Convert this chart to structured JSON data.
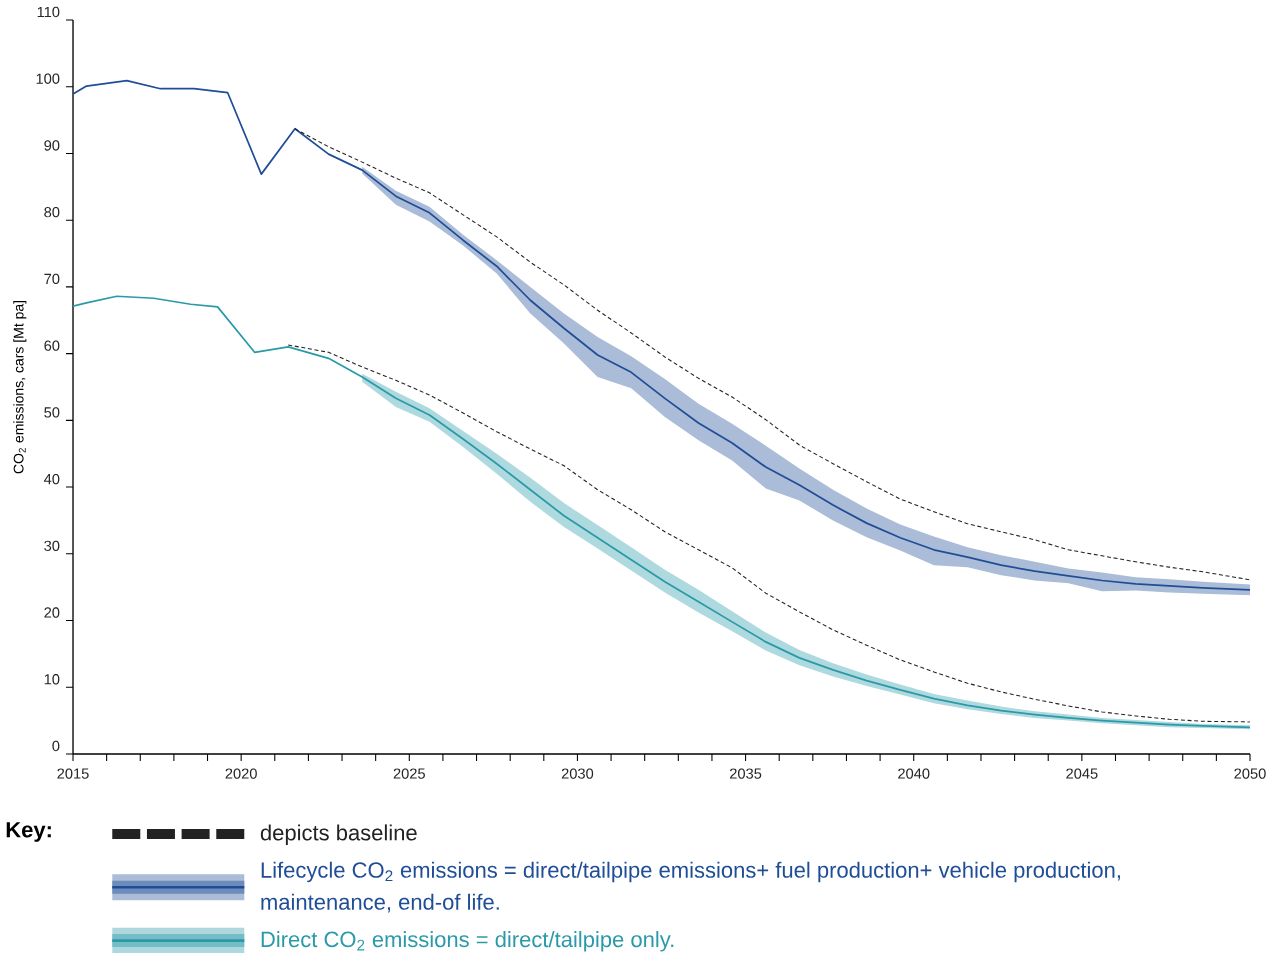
{
  "chart_data": {
    "type": "line",
    "ylabel": "CO$_{2}$ emissions, cars [Mt pa]",
    "legend_title": "Key:",
    "legend": "bottom",
    "xlim": [
      2015,
      2050
    ],
    "ylim": [
      0,
      110
    ],
    "yticks": [
      0,
      10,
      20,
      30,
      40,
      50,
      60,
      70,
      80,
      90,
      100,
      110
    ],
    "xticks": [
      2015,
      {
        "value": 2016,
        "label": null
      },
      {
        "value": 2017,
        "label": null
      },
      {
        "value": 2018,
        "label": null
      },
      {
        "value": 2019,
        "label": null
      },
      2020,
      {
        "value": 2021,
        "label": null
      },
      {
        "value": 2022,
        "label": null
      },
      {
        "value": 2023,
        "label": null
      },
      {
        "value": 2024,
        "label": null
      },
      2025,
      {
        "value": 2026,
        "label": null
      },
      {
        "value": 2027,
        "label": null
      },
      {
        "value": 2028,
        "label": null
      },
      {
        "value": 2029,
        "label": null
      },
      2030,
      {
        "value": 2031,
        "label": null
      },
      {
        "value": 2032,
        "label": null
      },
      {
        "value": 2033,
        "label": null
      },
      {
        "value": 2034,
        "label": null
      },
      2035,
      {
        "value": 2036,
        "label": null
      },
      {
        "value": 2037,
        "label": null
      },
      {
        "value": 2038,
        "label": null
      },
      {
        "value": 2039,
        "label": null
      },
      2040,
      {
        "value": 2041,
        "label": null
      },
      {
        "value": 2042,
        "label": null
      },
      {
        "value": 2043,
        "label": null
      },
      {
        "value": 2044,
        "label": null
      },
      2045,
      {
        "value": 2046,
        "label": null
      },
      {
        "value": 2047,
        "label": null
      },
      {
        "value": 2048,
        "label": null
      },
      {
        "value": 2049,
        "label": null
      },
      2050
    ],
    "series": [
      {
        "name": "depicts baseline",
        "color": "#222222",
        "line_style": "dashed",
        "x": [
          2021.6,
          2022.6,
          2023.6,
          2024.6,
          2025.6,
          2026.6,
          2027.6,
          2028.6,
          2029.6,
          2030.6,
          2031.6,
          2032.6,
          2033.6,
          2034.6,
          2035.6,
          2036.6,
          2037.6,
          2038.6,
          2039.6,
          2040.6,
          2041.6,
          2042.6,
          2043.6,
          2044.6,
          2045.6,
          2046.6,
          2047.6,
          2048.6,
          2050
        ],
        "values": [
          93.7,
          91.0,
          88.7,
          86.3,
          84.1,
          80.8,
          77.5,
          73.7,
          70.3,
          66.5,
          63.1,
          59.5,
          56.3,
          53.5,
          50.1,
          46.3,
          43.5,
          40.8,
          38.2,
          36.3,
          34.5,
          33.3,
          32.1,
          30.6,
          29.7,
          28.8,
          28.0,
          27.3,
          26.1
        ]
      },
      {
        "name": "Lifecycle CO$_{2}$ emissions = direct/tailpipe emissions+ fuel production+ vehicle production, maintenance, end-of life.",
        "color": "#1f4e96",
        "line_style": "solid",
        "x": [
          2015,
          2015.4,
          2016.6,
          2017.6,
          2018.6,
          2019.6,
          2020.6,
          2021.6,
          2022.6,
          2023.6,
          2024.6,
          2025.6,
          2026.6,
          2027.6,
          2028.6,
          2029.6,
          2030.6,
          2031.6,
          2032.6,
          2033.6,
          2034.6,
          2035.6,
          2036.6,
          2037.6,
          2038.6,
          2039.6,
          2040.6,
          2041.6,
          2042.6,
          2043.6,
          2044.6,
          2045.6,
          2046.6,
          2047.6,
          2048.6,
          2050
        ],
        "values": [
          98.9,
          100.1,
          100.9,
          99.7,
          99.7,
          99.1,
          86.9,
          93.7,
          89.9,
          87.5,
          83.6,
          81.1,
          77.0,
          73.1,
          68.0,
          63.8,
          59.8,
          57.2,
          53.3,
          49.6,
          46.6,
          43.0,
          40.3,
          37.3,
          34.6,
          32.4,
          30.6,
          29.5,
          28.3,
          27.4,
          26.7,
          26.0,
          25.5,
          25.2,
          24.9,
          24.6
        ],
        "lower": [
          null,
          null,
          null,
          null,
          null,
          null,
          null,
          null,
          null,
          87.0,
          82.3,
          79.8,
          76.2,
          72.0,
          66.0,
          61.5,
          56.5,
          54.8,
          50.5,
          47.0,
          44.0,
          39.8,
          38.0,
          35.0,
          32.5,
          30.5,
          28.3,
          28.0,
          26.8,
          26.0,
          25.6,
          24.4,
          24.5,
          24.2,
          24.0,
          23.8
        ],
        "upper": [
          null,
          null,
          null,
          null,
          null,
          null,
          null,
          null,
          null,
          88.0,
          84.4,
          82.0,
          77.8,
          74.0,
          70.0,
          66.0,
          62.5,
          59.6,
          56.2,
          52.5,
          49.5,
          46.2,
          42.8,
          39.6,
          36.8,
          34.4,
          32.6,
          31.0,
          29.8,
          28.8,
          27.8,
          27.2,
          26.5,
          26.2,
          25.8,
          25.4
        ]
      },
      {
        "name": "Direct CO$_{2}$ emissions = direct/tailpipe only.",
        "color": "#2a9aa8",
        "line_style": "solid",
        "x": [
          2015,
          2015.4,
          2016.3,
          2017.4,
          2018.5,
          2019.3,
          2020.4,
          2021.4,
          2022.6,
          2023.6,
          2024.6,
          2025.6,
          2026.6,
          2027.6,
          2028.6,
          2029.6,
          2030.6,
          2031.6,
          2032.6,
          2033.6,
          2034.6,
          2035.6,
          2036.6,
          2037.6,
          2038.6,
          2039.6,
          2040.6,
          2041.6,
          2042.6,
          2043.6,
          2044.6,
          2045.6,
          2046.6,
          2047.6,
          2048.6,
          2050
        ],
        "values": [
          67.1,
          67.6,
          68.6,
          68.3,
          67.4,
          67.0,
          60.2,
          61.0,
          59.3,
          56.5,
          53.3,
          50.8,
          47.2,
          43.5,
          39.6,
          35.7,
          32.4,
          29.1,
          25.8,
          22.8,
          19.8,
          16.8,
          14.4,
          12.6,
          11.0,
          9.6,
          8.3,
          7.3,
          6.5,
          5.9,
          5.4,
          5.0,
          4.7,
          4.4,
          4.2,
          4.0
        ],
        "lower": [
          null,
          null,
          null,
          null,
          null,
          null,
          null,
          null,
          null,
          55.8,
          52.0,
          49.8,
          46.0,
          42.0,
          37.8,
          34.0,
          30.8,
          27.5,
          24.2,
          21.2,
          18.4,
          15.5,
          13.3,
          11.6,
          10.2,
          8.9,
          7.6,
          6.7,
          6.0,
          5.4,
          5.0,
          4.6,
          4.3,
          4.0,
          3.9,
          3.7
        ],
        "upper": [
          null,
          null,
          null,
          null,
          null,
          null,
          null,
          null,
          null,
          57.0,
          54.3,
          51.8,
          48.4,
          45.0,
          41.4,
          37.6,
          34.3,
          31.0,
          27.6,
          24.6,
          21.4,
          18.2,
          15.6,
          13.6,
          11.9,
          10.4,
          9.0,
          8.0,
          7.1,
          6.4,
          5.9,
          5.4,
          5.1,
          4.8,
          4.5,
          4.3
        ]
      },
      {
        "color": "#222222",
        "line_style": "dashed",
        "x": [
          2021.4,
          2022.6,
          2023.6,
          2024.6,
          2025.6,
          2026.6,
          2027.6,
          2028.6,
          2029.6,
          2030.6,
          2031.6,
          2032.6,
          2033.6,
          2034.6,
          2035.6,
          2036.6,
          2037.6,
          2038.6,
          2039.6,
          2040.6,
          2041.6,
          2042.6,
          2043.6,
          2044.6,
          2045.6,
          2046.6,
          2047.6,
          2048.6,
          2050
        ],
        "values": [
          61.3,
          60.2,
          58.0,
          56.0,
          53.8,
          51.1,
          48.3,
          45.7,
          43.2,
          39.6,
          36.6,
          33.3,
          30.6,
          27.9,
          24.1,
          21.3,
          18.6,
          16.3,
          14.1,
          12.3,
          10.6,
          9.3,
          8.2,
          7.2,
          6.3,
          5.7,
          5.2,
          4.9,
          4.8
        ]
      }
    ]
  }
}
